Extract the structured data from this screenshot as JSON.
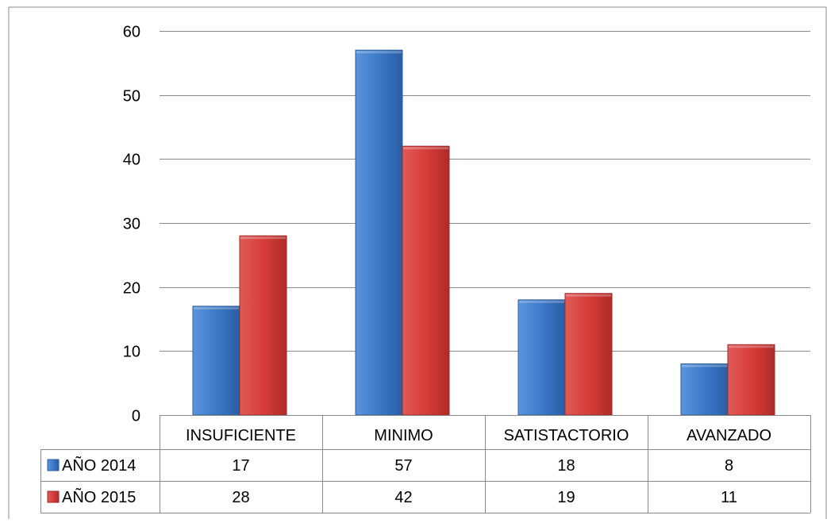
{
  "chart_data": {
    "type": "bar",
    "categories": [
      "INSUFICIENTE",
      "MINIMO",
      "SATISTACTORIO",
      "AVANZADO"
    ],
    "series": [
      {
        "name": "AÑO 2014",
        "values": [
          17,
          57,
          18,
          8
        ],
        "color": "#3a76c6"
      },
      {
        "name": "AÑO 2015",
        "values": [
          28,
          42,
          19,
          11
        ],
        "color": "#d43b38"
      }
    ],
    "ylim": [
      0,
      60
    ],
    "yticks": [
      0,
      10,
      20,
      30,
      40,
      50,
      60
    ],
    "grid": true,
    "legend": "data-table-left",
    "title": "",
    "xlabel": "",
    "ylabel": ""
  }
}
